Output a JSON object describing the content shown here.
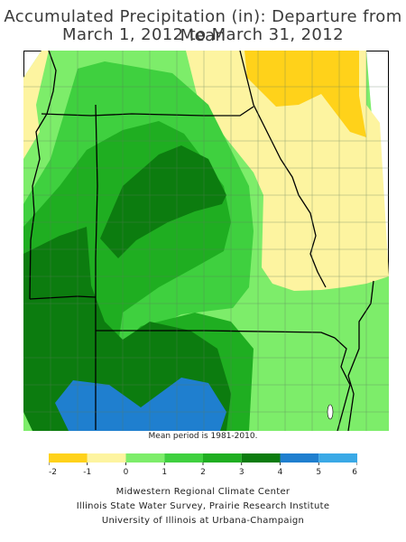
{
  "title_line1": "Accumulated Precipitation (in): Departure from Mean",
  "title_line2": "March 1, 2012 to March 31, 2012",
  "mean_period": "Mean period is 1981-2010.",
  "legend": {
    "ticks": [
      "-2",
      "-1",
      "0",
      "1",
      "2",
      "3",
      "4",
      "5",
      "6"
    ],
    "bins": [
      {
        "range": [
          -2,
          -1
        ],
        "color": "#ffd21a"
      },
      {
        "range": [
          -1,
          0
        ],
        "color": "#fdf4a0"
      },
      {
        "range": [
          0,
          1
        ],
        "color": "#7ded6a"
      },
      {
        "range": [
          1,
          2
        ],
        "color": "#3fd03f"
      },
      {
        "range": [
          2,
          3
        ],
        "color": "#1fae21"
      },
      {
        "range": [
          3,
          4
        ],
        "color": "#0c7c0f"
      },
      {
        "range": [
          4,
          5
        ],
        "color": "#1f7fcf"
      },
      {
        "range": [
          5,
          6
        ],
        "color": "#3aa9e6"
      }
    ]
  },
  "credits": [
    "Midwestern Regional Climate Center",
    "Illinois State Water Survey, Prairie Research Institute",
    "University of Illinois at Urbana-Champaign"
  ]
}
